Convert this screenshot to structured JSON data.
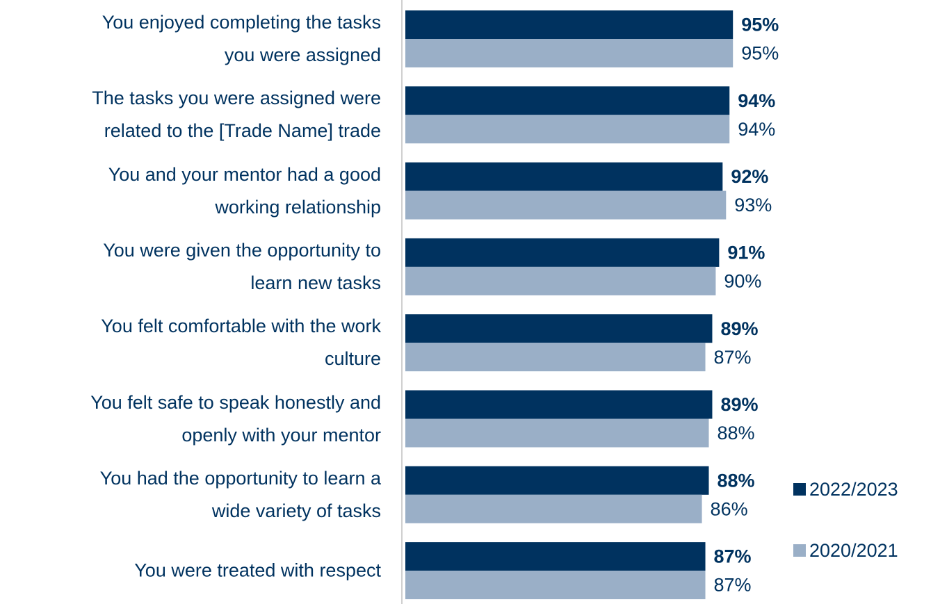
{
  "chart_data": {
    "type": "hbar",
    "categories": [
      "You enjoyed completing the tasks\nyou were assigned",
      "The tasks you were assigned were\nrelated to the [Trade Name] trade",
      "You and your mentor had a good\nworking relationship",
      "You were given the opportunity to\nlearn new tasks",
      "You felt comfortable with the work\nculture",
      "You felt safe to speak honestly and\nopenly with your mentor",
      "You had the opportunity to learn a\nwide variety of tasks",
      "You were treated with respect"
    ],
    "series": [
      {
        "name": "2022/2023",
        "color": "#00325f",
        "values": [
          95,
          94,
          92,
          91,
          89,
          89,
          88,
          87
        ],
        "value_labels": [
          "95%",
          "94%",
          "92%",
          "91%",
          "89%",
          "89%",
          "88%",
          "87%"
        ]
      },
      {
        "name": "2020/2021",
        "color": "#9aafc7",
        "values": [
          95,
          94,
          93,
          90,
          87,
          88,
          86,
          87
        ],
        "value_labels": [
          "95%",
          "94%",
          "93%",
          "90%",
          "87%",
          "88%",
          "86%",
          "87%"
        ]
      }
    ],
    "legend": "right"
  }
}
